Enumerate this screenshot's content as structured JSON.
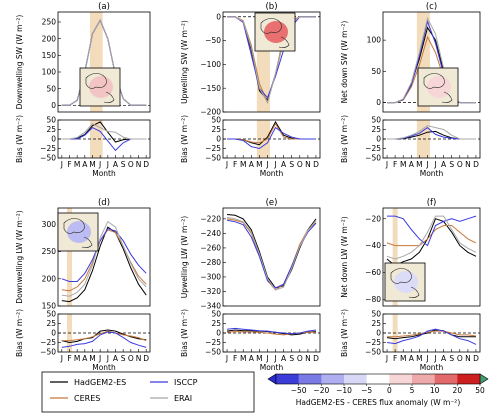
{
  "months": [
    "J",
    "F",
    "M",
    "A",
    "M",
    "J",
    "J",
    "A",
    "S",
    "O",
    "N",
    "D"
  ],
  "xlabel": "Month",
  "legend": {
    "items": [
      {
        "name": "HadGEM2-ES",
        "color": "#000000"
      },
      {
        "name": "CERES",
        "color": "#c8783c"
      },
      {
        "name": "ISCCP",
        "color": "#3a3ae0"
      },
      {
        "name": "ERAI",
        "color": "#a8a8a8"
      }
    ]
  },
  "colorbar": {
    "ticks": [
      "−50",
      "−20",
      "−10",
      "−5",
      "0",
      "5",
      "10",
      "20",
      "50"
    ],
    "colors": [
      "#3c3cd8",
      "#7a7ae6",
      "#aeaef0",
      "#d8d8f6",
      "#ffffff",
      "#f6d6d6",
      "#eeaaaa",
      "#e26a6a",
      "#cc2020"
    ],
    "label": "HadGEM2-ES - CERES flux anomaly (W m⁻²)"
  },
  "chart_data": [
    {
      "panel": "(a)",
      "type": "line",
      "ylabel": "Downwelling SW (W m⁻²)",
      "ylim": [
        -20,
        280
      ],
      "yticks": [
        0,
        50,
        100,
        150,
        200,
        250
      ],
      "highlight": [
        4,
        5
      ],
      "series": [
        {
          "name": "HadGEM2-ES",
          "values": [
            0,
            0,
            15,
            100,
            215,
            255,
            200,
            90,
            20,
            0,
            0,
            0
          ]
        },
        {
          "name": "CERES",
          "values": [
            0,
            0,
            15,
            100,
            215,
            255,
            200,
            90,
            20,
            0,
            0,
            0
          ]
        },
        {
          "name": "ISCCP",
          "values": [
            0,
            0,
            15,
            100,
            215,
            255,
            200,
            90,
            20,
            0,
            0,
            0
          ]
        },
        {
          "name": "ERAI",
          "values": [
            0,
            0,
            15,
            100,
            215,
            255,
            200,
            90,
            20,
            0,
            0,
            0
          ]
        }
      ],
      "bias": {
        "ylim": [
          -50,
          50
        ],
        "yticks": [
          -50,
          -25,
          0,
          25,
          50
        ],
        "series": [
          {
            "name": "HadGEM2-ES",
            "values": [
              0,
              0,
              2,
              12,
              35,
              45,
              18,
              -8,
              -2,
              0,
              0,
              0
            ]
          },
          {
            "name": "ISCCP",
            "values": [
              0,
              0,
              0,
              10,
              30,
              20,
              -5,
              -30,
              -10,
              0,
              0,
              0
            ]
          },
          {
            "name": "ERAI",
            "values": [
              0,
              0,
              4,
              18,
              40,
              30,
              20,
              18,
              5,
              0,
              0,
              0
            ]
          }
        ]
      }
    },
    {
      "panel": "(b)",
      "type": "line",
      "ylabel": "Upwelling SW (W m⁻²)",
      "ylim": [
        -200,
        10
      ],
      "yticks": [
        -200,
        -150,
        -100,
        -50,
        0
      ],
      "highlight": [
        4,
        5
      ],
      "series": [
        {
          "name": "HadGEM2-ES",
          "values": [
            0,
            0,
            -10,
            -70,
            -155,
            -175,
            -120,
            -50,
            -10,
            0,
            0,
            0
          ]
        },
        {
          "name": "CERES",
          "values": [
            0,
            0,
            -8,
            -60,
            -140,
            -180,
            -120,
            -40,
            -8,
            0,
            0,
            0
          ]
        },
        {
          "name": "ISCCP",
          "values": [
            0,
            0,
            -12,
            -80,
            -150,
            -170,
            -125,
            -70,
            -20,
            0,
            0,
            0
          ]
        },
        {
          "name": "ERAI",
          "values": [
            0,
            0,
            -10,
            -65,
            -150,
            -180,
            -120,
            -50,
            -12,
            0,
            0,
            0
          ]
        }
      ],
      "bias": {
        "ylim": [
          -50,
          50
        ],
        "yticks": [
          -50,
          -25,
          0,
          25,
          50
        ],
        "series": [
          {
            "name": "HadGEM2-ES",
            "values": [
              0,
              0,
              -2,
              -10,
              -15,
              5,
              45,
              10,
              2,
              0,
              0,
              0
            ]
          },
          {
            "name": "CERES",
            "values": [
              0,
              0,
              -2,
              -8,
              -10,
              0,
              40,
              5,
              0,
              0,
              0,
              0
            ]
          },
          {
            "name": "ISCCP",
            "values": [
              0,
              0,
              -4,
              -20,
              -25,
              -10,
              30,
              15,
              5,
              0,
              0,
              0
            ]
          }
        ]
      }
    },
    {
      "panel": "(c)",
      "type": "line",
      "ylabel": "Net down SW (W m⁻²)",
      "ylim": [
        -15,
        145
      ],
      "yticks": [
        0,
        50,
        100
      ],
      "highlight": [
        4,
        5
      ],
      "series": [
        {
          "name": "HadGEM2-ES",
          "values": [
            0,
            0,
            5,
            30,
            70,
            120,
            100,
            50,
            10,
            0,
            0,
            0
          ]
        },
        {
          "name": "CERES",
          "values": [
            0,
            0,
            4,
            25,
            60,
            105,
            80,
            40,
            8,
            0,
            0,
            0
          ]
        },
        {
          "name": "ISCCP",
          "values": [
            0,
            0,
            5,
            28,
            75,
            130,
            95,
            45,
            10,
            0,
            0,
            0
          ]
        },
        {
          "name": "ERAI",
          "values": [
            0,
            0,
            6,
            32,
            80,
            135,
            110,
            55,
            12,
            0,
            0,
            0
          ]
        }
      ],
      "bias": {
        "ylim": [
          -50,
          50
        ],
        "yticks": [
          -50,
          -25,
          0,
          25,
          50
        ],
        "series": [
          {
            "name": "HadGEM2-ES",
            "values": [
              0,
              0,
              1,
              5,
              10,
              18,
              20,
              10,
              3,
              0,
              0,
              0
            ]
          },
          {
            "name": "ISCCP",
            "values": [
              0,
              0,
              2,
              8,
              15,
              30,
              12,
              5,
              2,
              0,
              0,
              0
            ]
          },
          {
            "name": "ERAI",
            "values": [
              0,
              0,
              3,
              10,
              20,
              35,
              30,
              25,
              10,
              0,
              0,
              0
            ]
          }
        ]
      }
    },
    {
      "panel": "(d)",
      "type": "line",
      "ylabel": "Downwelling LW (W m⁻²)",
      "ylim": [
        150,
        330
      ],
      "yticks": [
        150,
        200,
        250,
        300
      ],
      "highlight": [
        1,
        1
      ],
      "series": [
        {
          "name": "HadGEM2-ES",
          "values": [
            160,
            158,
            165,
            180,
            215,
            260,
            295,
            285,
            255,
            220,
            190,
            170
          ]
        },
        {
          "name": "CERES",
          "values": [
            180,
            178,
            185,
            200,
            230,
            270,
            290,
            285,
            260,
            230,
            205,
            190
          ]
        },
        {
          "name": "ISCCP",
          "values": [
            200,
            195,
            195,
            210,
            235,
            270,
            292,
            288,
            270,
            245,
            225,
            210
          ]
        },
        {
          "name": "ERAI",
          "values": [
            170,
            168,
            175,
            190,
            225,
            275,
            305,
            295,
            260,
            228,
            200,
            185
          ]
        }
      ],
      "bias": {
        "ylim": [
          -50,
          50
        ],
        "yticks": [
          -50,
          -25,
          0,
          25,
          50
        ],
        "series": [
          {
            "name": "HadGEM2-ES",
            "values": [
              -20,
              -25,
              -22,
              -15,
              -12,
              5,
              8,
              5,
              -3,
              -10,
              -15,
              -18
            ]
          },
          {
            "name": "CERES",
            "values": [
              -20,
              -20,
              -18,
              -15,
              -10,
              -2,
              5,
              0,
              -5,
              -8,
              -12,
              -20
            ]
          },
          {
            "name": "ISCCP",
            "values": [
              -38,
              -35,
              -30,
              -28,
              -22,
              -5,
              3,
              0,
              -12,
              -25,
              -32,
              -38
            ]
          }
        ]
      }
    },
    {
      "panel": "(e)",
      "type": "line",
      "ylabel": "Upwelling LW (W m⁻²)",
      "ylim": [
        -340,
        -205
      ],
      "yticks": [
        -340,
        -320,
        -300,
        -280,
        -260,
        -240,
        -220
      ],
      "highlight": null,
      "series": [
        {
          "name": "HadGEM2-ES",
          "values": [
            -214,
            -215,
            -220,
            -235,
            -265,
            -300,
            -315,
            -312,
            -290,
            -260,
            -235,
            -220
          ]
        },
        {
          "name": "CERES",
          "values": [
            -220,
            -222,
            -225,
            -240,
            -270,
            -305,
            -318,
            -310,
            -285,
            -255,
            -235,
            -225
          ]
        },
        {
          "name": "ISCCP",
          "values": [
            -222,
            -224,
            -228,
            -245,
            -272,
            -305,
            -315,
            -310,
            -285,
            -258,
            -238,
            -226
          ]
        },
        {
          "name": "ERAI",
          "values": [
            -218,
            -220,
            -224,
            -238,
            -268,
            -302,
            -318,
            -314,
            -288,
            -258,
            -236,
            -222
          ]
        }
      ],
      "bias": {
        "ylim": [
          -50,
          50
        ],
        "yticks": [
          -50,
          -25,
          0,
          25,
          50
        ],
        "series": [
          {
            "name": "HadGEM2-ES",
            "values": [
              5,
              8,
              6,
              6,
              5,
              4,
              2,
              -2,
              -5,
              -3,
              2,
              4
            ]
          },
          {
            "name": "CERES",
            "values": [
              2,
              4,
              3,
              3,
              2,
              0,
              -3,
              -5,
              -2,
              0,
              2,
              2
            ]
          },
          {
            "name": "ISCCP",
            "values": [
              10,
              12,
              10,
              8,
              6,
              5,
              2,
              0,
              -2,
              0,
              5,
              8
            ]
          }
        ]
      }
    },
    {
      "panel": "(f)",
      "type": "line",
      "ylabel": "Net down LW (W m⁻²)",
      "ylim": [
        -85,
        -12
      ],
      "yticks": [
        -80,
        -60,
        -40,
        -20
      ],
      "highlight": [
        1,
        1
      ],
      "series": [
        {
          "name": "HadGEM2-ES",
          "values": [
            -50,
            -55,
            -52,
            -50,
            -45,
            -35,
            -20,
            -22,
            -30,
            -40,
            -45,
            -48
          ]
        },
        {
          "name": "CERES",
          "values": [
            -38,
            -40,
            -40,
            -40,
            -40,
            -35,
            -28,
            -25,
            -25,
            -30,
            -35,
            -38
          ]
        },
        {
          "name": "ISCCP",
          "values": [
            -18,
            -18,
            -20,
            -28,
            -35,
            -40,
            -25,
            -22,
            -20,
            -22,
            -20,
            -18
          ]
        },
        {
          "name": "ERAI",
          "values": [
            -48,
            -50,
            -48,
            -45,
            -40,
            -30,
            -18,
            -18,
            -28,
            -38,
            -42,
            -45
          ]
        }
      ],
      "bias": {
        "ylim": [
          -50,
          50
        ],
        "yticks": [
          -50,
          -25,
          0,
          25,
          50
        ],
        "series": [
          {
            "name": "HadGEM2-ES",
            "values": [
              -12,
              -15,
              -12,
              -10,
              -5,
              0,
              8,
              6,
              -5,
              -10,
              -10,
              -10
            ]
          },
          {
            "name": "CERES",
            "values": [
              -10,
              -10,
              -8,
              -6,
              -2,
              2,
              5,
              5,
              0,
              -5,
              -5,
              -8
            ]
          },
          {
            "name": "ISCCP",
            "values": [
              -25,
              -28,
              -20,
              -15,
              -8,
              5,
              10,
              5,
              -5,
              -15,
              -20,
              -30
            ]
          }
        ]
      }
    }
  ]
}
